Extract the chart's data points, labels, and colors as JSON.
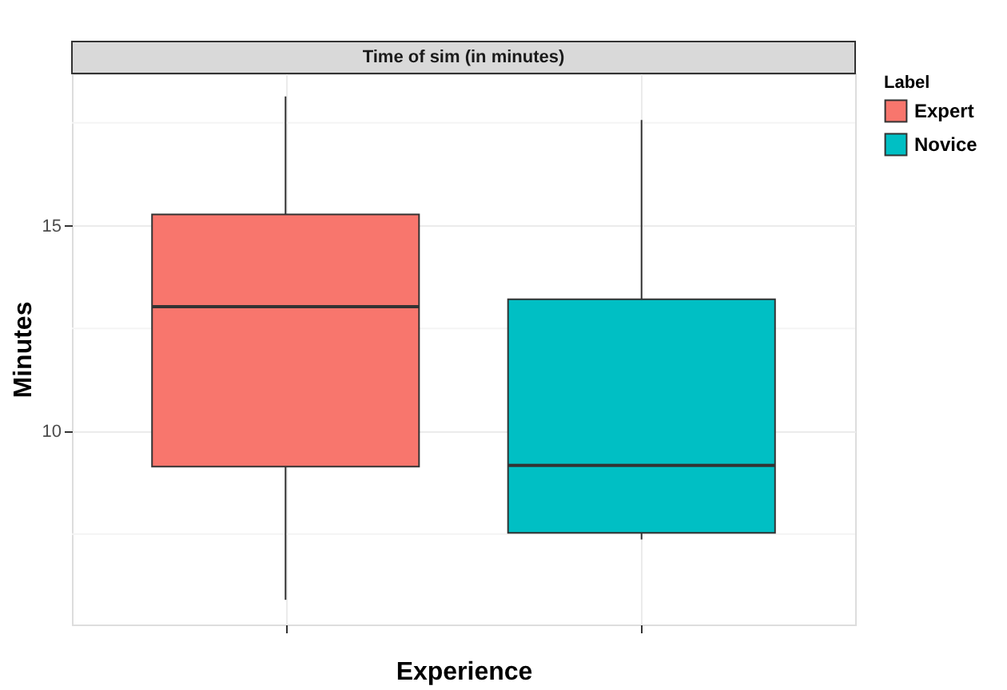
{
  "chart_data": {
    "type": "box",
    "title": "Time of sim (in minutes)",
    "xlabel": "Experience",
    "ylabel": "Minutes",
    "legend_title": "Label",
    "categories": [
      null,
      null
    ],
    "series": [
      {
        "name": "Expert",
        "color": "#f8766d",
        "boxes": [
          {
            "low": 5.9,
            "q1": 9.14,
            "median": 13.03,
            "q3": 15.27,
            "high": 18.14
          },
          null
        ]
      },
      {
        "name": "Novice",
        "color": "#00bfc4",
        "boxes": [
          null,
          {
            "low": 7.37,
            "q1": 7.53,
            "median": 9.17,
            "q3": 13.21,
            "high": 17.57
          }
        ]
      }
    ],
    "ylim": [
      5.3,
      18.7
    ],
    "yticks": [
      10,
      15
    ],
    "grid": true,
    "legend": "right"
  }
}
